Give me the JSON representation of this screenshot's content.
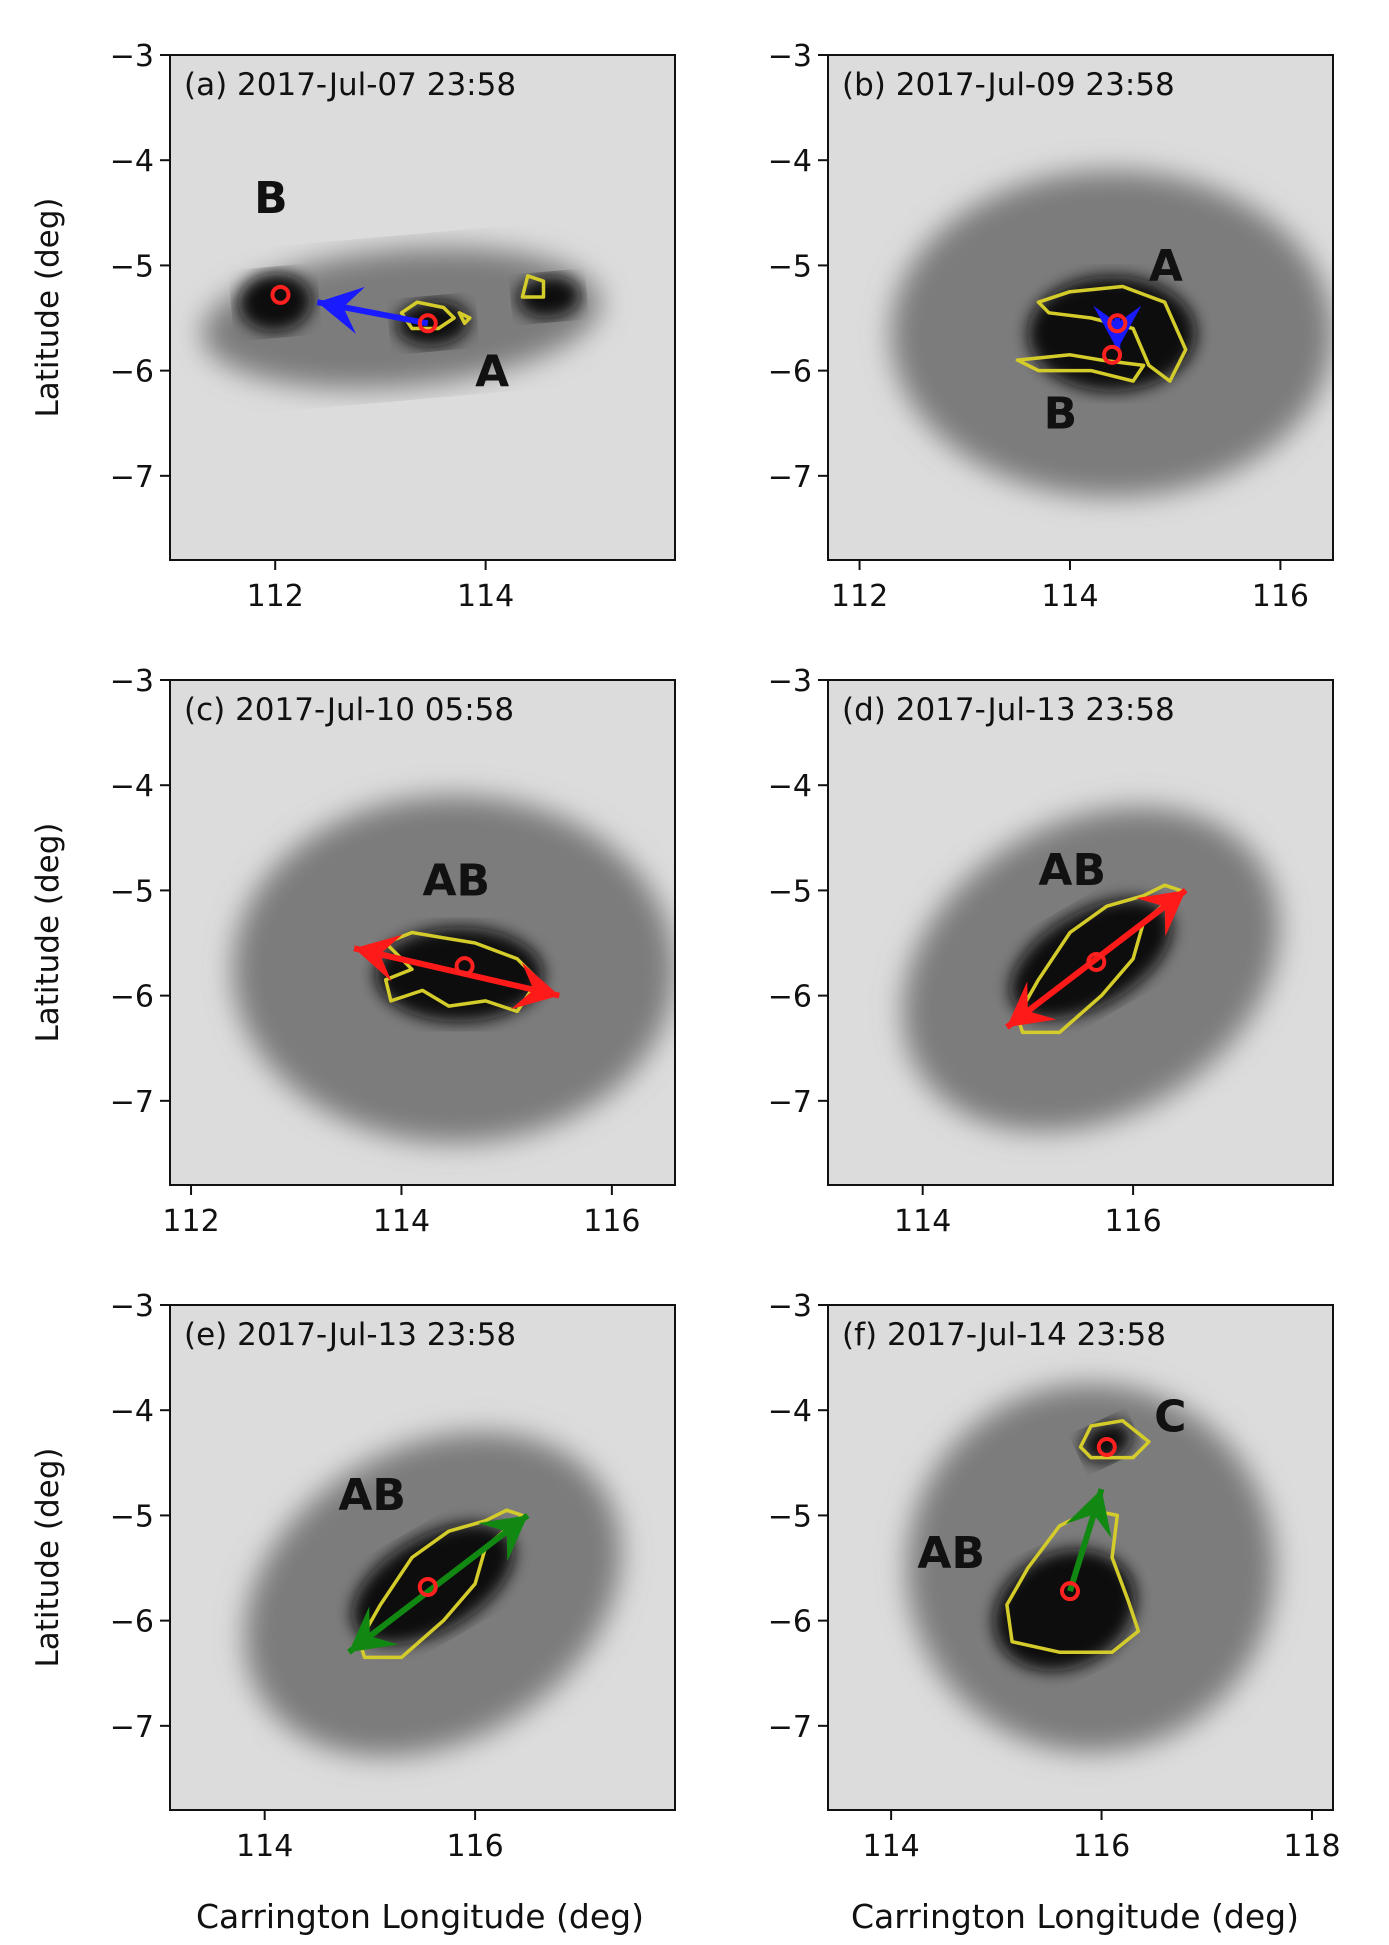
{
  "figure": {
    "xlabel": "Carrington Longitude (deg)",
    "ylabel": "Latitude (deg)"
  },
  "colors": {
    "contour": "#d4cc2a",
    "centroid": "#ff2020",
    "arrow_blue": "#1a1aff",
    "arrow_red": "#ff1a1a",
    "arrow_green": "#118811",
    "label": "#111111"
  },
  "chart_data": [
    {
      "type": "other",
      "panel": "a",
      "title": "(a) 2017-Jul-07 23:58",
      "xlim": [
        111.0,
        115.8
      ],
      "ylim": [
        -7.8,
        -3.0
      ],
      "xticks": [
        112,
        114
      ],
      "yticks": [
        -3,
        -4,
        -5,
        -6,
        -7
      ],
      "ylabel_shown": true,
      "xlabel_shown": false,
      "spot": {
        "cx": 113.2,
        "cy": -5.5,
        "rx": 1.9,
        "ry": 0.65,
        "angle": -5,
        "umbrae": [
          {
            "cx": 112.0,
            "cy": -5.35,
            "rx": 0.35,
            "ry": 0.28
          },
          {
            "cx": 113.5,
            "cy": -5.55,
            "rx": 0.35,
            "ry": 0.22
          },
          {
            "cx": 114.6,
            "cy": -5.3,
            "rx": 0.3,
            "ry": 0.2
          }
        ]
      },
      "contours": [
        [
          [
            113.2,
            -5.45
          ],
          [
            113.35,
            -5.35
          ],
          [
            113.6,
            -5.4
          ],
          [
            113.7,
            -5.5
          ],
          [
            113.55,
            -5.6
          ],
          [
            113.3,
            -5.6
          ],
          [
            113.2,
            -5.45
          ]
        ],
        [
          [
            113.75,
            -5.45
          ],
          [
            113.85,
            -5.5
          ],
          [
            113.8,
            -5.55
          ],
          [
            113.75,
            -5.45
          ]
        ],
        [
          [
            114.35,
            -5.3
          ],
          [
            114.4,
            -5.1
          ],
          [
            114.55,
            -5.15
          ],
          [
            114.55,
            -5.3
          ],
          [
            114.35,
            -5.3
          ]
        ]
      ],
      "centroids": [
        {
          "x": 112.05,
          "y": -5.28
        },
        {
          "x": 113.45,
          "y": -5.55
        }
      ],
      "arrow": {
        "from": [
          113.45,
          -5.55
        ],
        "to": [
          112.4,
          -5.35
        ],
        "color": "blue",
        "head": "end"
      },
      "labels": [
        {
          "text": "B",
          "x": 111.8,
          "y": -4.5
        },
        {
          "text": "A",
          "x": 113.9,
          "y": -6.15
        }
      ]
    },
    {
      "type": "other",
      "panel": "b",
      "title": "(b) 2017-Jul-09 23:58",
      "xlim": [
        111.7,
        116.5
      ],
      "ylim": [
        -7.8,
        -3.0
      ],
      "xticks": [
        112,
        114,
        116
      ],
      "yticks": [
        -3,
        -4,
        -5,
        -6,
        -7
      ],
      "ylabel_shown": false,
      "xlabel_shown": false,
      "spot": {
        "cx": 114.4,
        "cy": -5.65,
        "rx": 2.1,
        "ry": 1.55,
        "angle": 0,
        "umbrae": [
          {
            "cx": 114.4,
            "cy": -5.65,
            "rx": 0.8,
            "ry": 0.55
          }
        ]
      },
      "contours": [
        [
          [
            113.7,
            -5.35
          ],
          [
            114.0,
            -5.25
          ],
          [
            114.5,
            -5.2
          ],
          [
            114.9,
            -5.35
          ],
          [
            115.1,
            -5.8
          ],
          [
            114.95,
            -6.1
          ],
          [
            114.75,
            -5.95
          ],
          [
            114.6,
            -5.6
          ],
          [
            114.2,
            -5.5
          ],
          [
            113.8,
            -5.45
          ],
          [
            113.7,
            -5.35
          ]
        ],
        [
          [
            113.5,
            -5.9
          ],
          [
            114.0,
            -5.85
          ],
          [
            114.3,
            -5.9
          ],
          [
            114.7,
            -5.95
          ],
          [
            114.6,
            -6.1
          ],
          [
            114.2,
            -6.0
          ],
          [
            113.7,
            -6.0
          ],
          [
            113.5,
            -5.9
          ]
        ]
      ],
      "centroids": [
        {
          "x": 114.45,
          "y": -5.55
        },
        {
          "x": 114.4,
          "y": -5.85
        }
      ],
      "arrow": {
        "from": [
          114.45,
          -5.5
        ],
        "to": [
          114.45,
          -5.8
        ],
        "color": "blue",
        "head": "end"
      },
      "labels": [
        {
          "text": "A",
          "x": 114.75,
          "y": -5.15
        },
        {
          "text": "B",
          "x": 113.75,
          "y": -6.55
        }
      ]
    },
    {
      "type": "other",
      "panel": "c",
      "title": "(c) 2017-Jul-10 05:58",
      "xlim": [
        111.8,
        116.6
      ],
      "ylim": [
        -7.8,
        -3.0
      ],
      "xticks": [
        112,
        114,
        116
      ],
      "yticks": [
        -3,
        -4,
        -5,
        -6,
        -7
      ],
      "ylabel_shown": true,
      "xlabel_shown": false,
      "spot": {
        "cx": 114.5,
        "cy": -5.75,
        "rx": 2.1,
        "ry": 1.65,
        "angle": 0,
        "umbrae": [
          {
            "cx": 114.55,
            "cy": -5.8,
            "rx": 0.8,
            "ry": 0.45
          }
        ]
      },
      "contours": [
        [
          [
            113.85,
            -5.5
          ],
          [
            114.1,
            -5.4
          ],
          [
            114.4,
            -5.45
          ],
          [
            114.7,
            -5.5
          ],
          [
            115.1,
            -5.65
          ],
          [
            115.3,
            -5.85
          ],
          [
            115.1,
            -6.15
          ],
          [
            114.8,
            -6.05
          ],
          [
            114.45,
            -6.1
          ],
          [
            114.2,
            -5.95
          ],
          [
            113.9,
            -6.05
          ],
          [
            113.85,
            -5.85
          ],
          [
            114.1,
            -5.75
          ],
          [
            113.85,
            -5.5
          ]
        ]
      ],
      "centroids": [
        {
          "x": 114.6,
          "y": -5.72
        }
      ],
      "arrow": {
        "from": [
          113.55,
          -5.55
        ],
        "to": [
          115.5,
          -6.0
        ],
        "color": "red",
        "head": "both"
      },
      "labels": [
        {
          "text": "AB",
          "x": 114.2,
          "y": -5.05
        }
      ]
    },
    {
      "type": "other",
      "panel": "d",
      "title": "(d) 2017-Jul-13 23:58",
      "xlim": [
        113.1,
        117.9
      ],
      "ylim": [
        -7.8,
        -3.0
      ],
      "xticks": [
        114,
        116
      ],
      "yticks": [
        -3,
        -4,
        -5,
        -6,
        -7
      ],
      "ylabel_shown": false,
      "xlabel_shown": false,
      "spot": {
        "cx": 115.6,
        "cy": -5.75,
        "rx": 1.9,
        "ry": 1.4,
        "angle": -30,
        "umbrae": [
          {
            "cx": 115.6,
            "cy": -5.65,
            "rx": 0.85,
            "ry": 0.45
          }
        ]
      },
      "contours": [
        [
          [
            114.9,
            -6.2
          ],
          [
            115.1,
            -5.85
          ],
          [
            115.4,
            -5.4
          ],
          [
            115.75,
            -5.15
          ],
          [
            116.1,
            -5.05
          ],
          [
            116.3,
            -4.95
          ],
          [
            116.45,
            -5.0
          ],
          [
            116.1,
            -5.3
          ],
          [
            116.0,
            -5.65
          ],
          [
            115.7,
            -6.0
          ],
          [
            115.3,
            -6.35
          ],
          [
            114.95,
            -6.35
          ],
          [
            114.9,
            -6.2
          ]
        ]
      ],
      "centroids": [
        {
          "x": 115.65,
          "y": -5.68
        }
      ],
      "arrow": {
        "from": [
          114.8,
          -6.3
        ],
        "to": [
          116.5,
          -5.0
        ],
        "color": "red",
        "head": "both"
      },
      "labels": [
        {
          "text": "AB",
          "x": 115.1,
          "y": -4.95
        }
      ]
    },
    {
      "type": "other",
      "panel": "e",
      "title": "(e) 2017-Jul-13 23:58",
      "xlim": [
        113.1,
        117.9
      ],
      "ylim": [
        -7.8,
        -3.0
      ],
      "xticks": [
        114,
        116
      ],
      "yticks": [
        -3,
        -4,
        -5,
        -6,
        -7
      ],
      "ylabel_shown": true,
      "xlabel_shown": true,
      "spot": {
        "cx": 115.6,
        "cy": -5.75,
        "rx": 1.9,
        "ry": 1.4,
        "angle": -30,
        "umbrae": [
          {
            "cx": 115.6,
            "cy": -5.65,
            "rx": 0.85,
            "ry": 0.45
          }
        ]
      },
      "contours": [
        [
          [
            114.9,
            -6.2
          ],
          [
            115.1,
            -5.85
          ],
          [
            115.4,
            -5.4
          ],
          [
            115.75,
            -5.15
          ],
          [
            116.1,
            -5.05
          ],
          [
            116.3,
            -4.95
          ],
          [
            116.45,
            -5.0
          ],
          [
            116.1,
            -5.3
          ],
          [
            116.0,
            -5.65
          ],
          [
            115.7,
            -6.0
          ],
          [
            115.3,
            -6.35
          ],
          [
            114.95,
            -6.35
          ],
          [
            114.9,
            -6.2
          ]
        ]
      ],
      "centroids": [
        {
          "x": 115.55,
          "y": -5.68
        }
      ],
      "arrow": {
        "from": [
          114.8,
          -6.3
        ],
        "to": [
          116.5,
          -5.0
        ],
        "color": "green",
        "head": "both"
      },
      "labels": [
        {
          "text": "AB",
          "x": 114.7,
          "y": -4.95
        }
      ]
    },
    {
      "type": "other",
      "panel": "f",
      "title": "(f) 2017-Jul-14 23:58",
      "xlim": [
        113.4,
        118.2
      ],
      "ylim": [
        -7.8,
        -3.0
      ],
      "xticks": [
        114,
        116,
        118
      ],
      "yticks": [
        -3,
        -4,
        -5,
        -6,
        -7
      ],
      "ylabel_shown": false,
      "xlabel_shown": true,
      "spot": {
        "cx": 115.9,
        "cy": -5.5,
        "rx": 1.75,
        "ry": 1.75,
        "angle": -25,
        "umbrae": [
          {
            "cx": 115.65,
            "cy": -5.9,
            "rx": 0.7,
            "ry": 0.55
          },
          {
            "cx": 116.05,
            "cy": -4.3,
            "rx": 0.25,
            "ry": 0.18
          }
        ]
      },
      "contours": [
        [
          [
            115.1,
            -5.85
          ],
          [
            115.3,
            -5.5
          ],
          [
            115.6,
            -5.1
          ],
          [
            115.9,
            -4.95
          ],
          [
            116.15,
            -5.0
          ],
          [
            116.1,
            -5.4
          ],
          [
            116.25,
            -5.8
          ],
          [
            116.35,
            -6.1
          ],
          [
            116.1,
            -6.3
          ],
          [
            115.6,
            -6.3
          ],
          [
            115.15,
            -6.2
          ],
          [
            115.1,
            -5.85
          ]
        ],
        [
          [
            115.8,
            -4.35
          ],
          [
            115.9,
            -4.15
          ],
          [
            116.2,
            -4.1
          ],
          [
            116.45,
            -4.3
          ],
          [
            116.3,
            -4.45
          ],
          [
            115.9,
            -4.45
          ],
          [
            115.8,
            -4.35
          ]
        ]
      ],
      "centroids": [
        {
          "x": 115.7,
          "y": -5.72
        },
        {
          "x": 116.05,
          "y": -4.35
        }
      ],
      "arrow": {
        "from": [
          115.7,
          -5.72
        ],
        "to": [
          116.0,
          -4.75
        ],
        "color": "green",
        "head": "end"
      },
      "labels": [
        {
          "text": "C",
          "x": 116.5,
          "y": -4.2
        },
        {
          "text": "AB",
          "x": 114.25,
          "y": -5.5
        }
      ]
    }
  ]
}
